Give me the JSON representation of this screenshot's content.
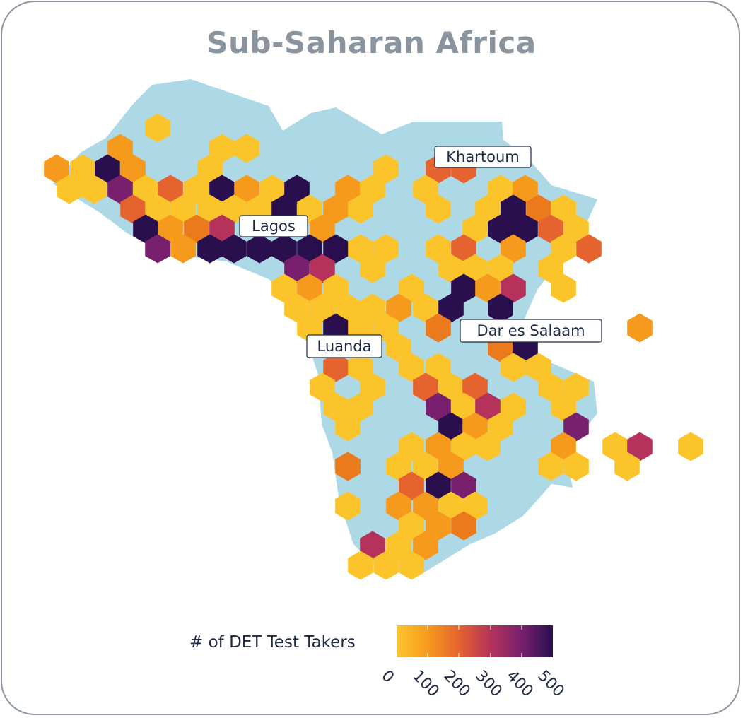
{
  "title": "Sub-Saharan Africa",
  "colors": {
    "land": "#add8e6",
    "frame": "#8c96a0",
    "text": "#1f2a44"
  },
  "legend": {
    "title": "# of DET Test Takers",
    "ticks": [
      "0",
      "100",
      "200",
      "300",
      "400",
      "500"
    ],
    "tick_values": [
      0,
      100,
      200,
      300,
      400,
      500
    ],
    "range": [
      0,
      560
    ]
  },
  "city_labels": [
    "Khartoum",
    "Lagos",
    "Dar es Salaam",
    "Luanda"
  ],
  "chart_data": {
    "type": "heatmap",
    "title": "Sub-Saharan Africa",
    "colorscale": "inferno-reversed",
    "value_range": [
      0,
      560
    ],
    "annotations": [
      "Khartoum",
      "Lagos",
      "Dar es Salaam",
      "Luanda"
    ]
  }
}
